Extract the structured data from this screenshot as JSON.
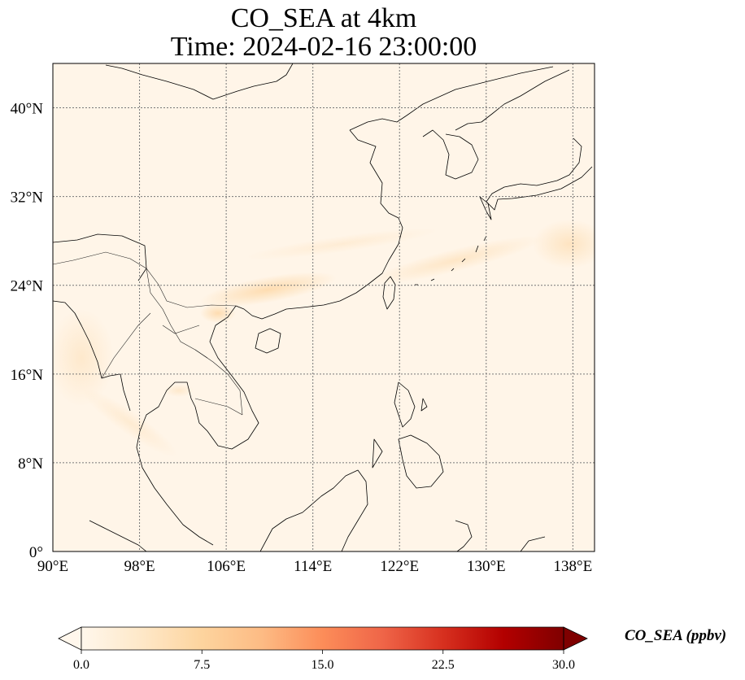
{
  "title": {
    "line1": "CO_SEA at 4km",
    "line2": "Time: 2024-02-16 23:00:00"
  },
  "map": {
    "lon_range": [
      90,
      140
    ],
    "lat_range": [
      0,
      44
    ],
    "lon_ticks": [
      {
        "value": 90,
        "label": "90°E"
      },
      {
        "value": 98,
        "label": "98°E"
      },
      {
        "value": 106,
        "label": "106°E"
      },
      {
        "value": 114,
        "label": "114°E"
      },
      {
        "value": 122,
        "label": "122°E"
      },
      {
        "value": 130,
        "label": "130°E"
      },
      {
        "value": 138,
        "label": "138°E"
      }
    ],
    "lat_ticks": [
      {
        "value": 0,
        "label": "0°"
      },
      {
        "value": 8,
        "label": "8°N"
      },
      {
        "value": 16,
        "label": "16°N"
      },
      {
        "value": 24,
        "label": "24°N"
      },
      {
        "value": 32,
        "label": "32°N"
      },
      {
        "value": 40,
        "label": "40°N"
      }
    ],
    "gridlines": true,
    "background_color": "#fff5e8",
    "coastline_color": "#000000"
  },
  "colorbar": {
    "label": "CO_SEA (ppbv)",
    "min": 0,
    "max": 30,
    "ticks": [
      {
        "value": 0,
        "label": "0.0"
      },
      {
        "value": 7.5,
        "label": "7.5"
      },
      {
        "value": 15,
        "label": "15.0"
      },
      {
        "value": 22.5,
        "label": "22.5"
      },
      {
        "value": 30,
        "label": "30.0"
      }
    ],
    "colormap": "OrRd",
    "extend": "both",
    "colors": [
      "#fff7ec",
      "#fee8c8",
      "#fdd49e",
      "#fdbb84",
      "#fc8d59",
      "#ef6548",
      "#d7301f",
      "#b30000",
      "#7f0000"
    ]
  }
}
